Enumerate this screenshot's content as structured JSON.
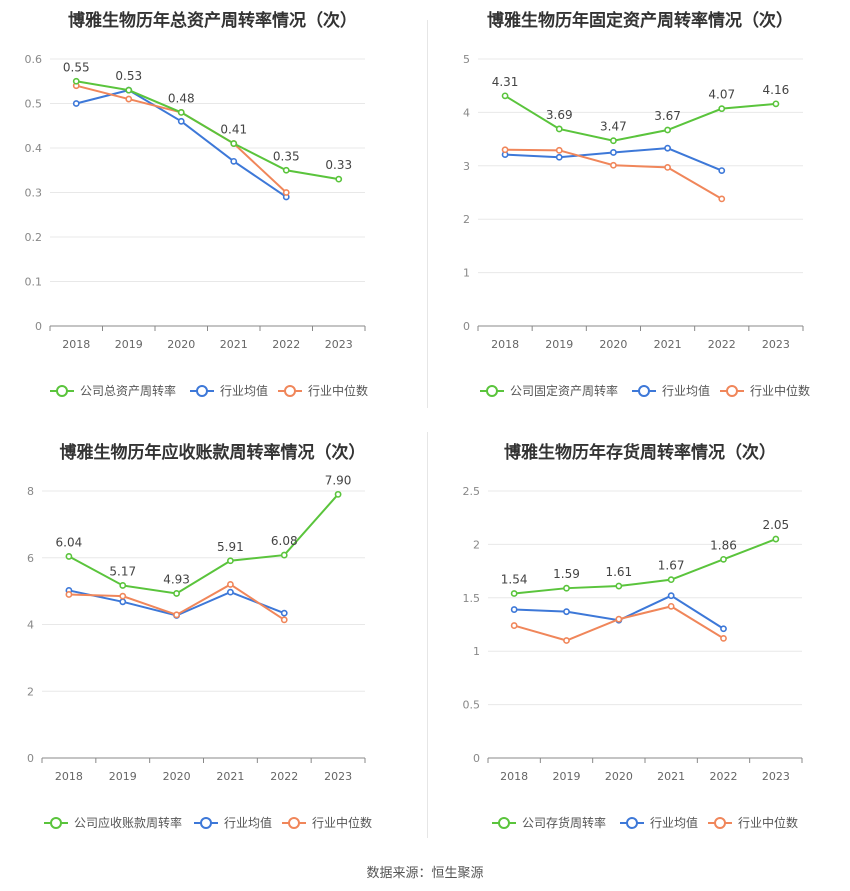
{
  "source_label": "数据来源：恒生聚源",
  "chart_data": [
    {
      "type": "line",
      "title": "博雅生物历年总资产周转率情况（次）",
      "categories": [
        "2018",
        "2019",
        "2020",
        "2021",
        "2022",
        "2023"
      ],
      "ylim": [
        0,
        0.6
      ],
      "yticks": [
        "0",
        "0.1",
        "0.2",
        "0.3",
        "0.4",
        "0.5",
        "0.6"
      ],
      "grid": true,
      "legend_position": "bottom",
      "series": [
        {
          "name": "公司总资产周转率",
          "values": [
            0.55,
            0.53,
            0.48,
            0.41,
            0.35,
            0.33
          ],
          "labels": [
            "0.55",
            "0.53",
            "0.48",
            "0.41",
            "0.35",
            "0.33"
          ],
          "color": "#5ac43c"
        },
        {
          "name": "行业均值",
          "values": [
            0.5,
            0.53,
            0.46,
            0.37,
            0.29,
            null
          ],
          "color": "#3d78d8"
        },
        {
          "name": "行业中位数",
          "values": [
            0.54,
            0.51,
            0.48,
            0.41,
            0.3,
            null
          ],
          "color": "#f0865a"
        }
      ]
    },
    {
      "type": "line",
      "title": "博雅生物历年固定资产周转率情况（次）",
      "categories": [
        "2018",
        "2019",
        "2020",
        "2021",
        "2022",
        "2023"
      ],
      "ylim": [
        0,
        5
      ],
      "yticks": [
        "0",
        "1",
        "2",
        "3",
        "4",
        "5"
      ],
      "grid": true,
      "legend_position": "bottom",
      "series": [
        {
          "name": "公司固定资产周转率",
          "values": [
            4.31,
            3.69,
            3.47,
            3.67,
            4.07,
            4.16
          ],
          "labels": [
            "4.31",
            "3.69",
            "3.47",
            "3.67",
            "4.07",
            "4.16"
          ],
          "color": "#5ac43c"
        },
        {
          "name": "行业均值",
          "values": [
            3.21,
            3.16,
            3.25,
            3.33,
            2.91,
            null
          ],
          "color": "#3d78d8"
        },
        {
          "name": "行业中位数",
          "values": [
            3.3,
            3.29,
            3.01,
            2.97,
            2.38,
            null
          ],
          "color": "#f0865a"
        }
      ]
    },
    {
      "type": "line",
      "title": "博雅生物历年应收账款周转率情况（次）",
      "categories": [
        "2018",
        "2019",
        "2020",
        "2021",
        "2022",
        "2023"
      ],
      "ylim": [
        0,
        8
      ],
      "yticks": [
        "0",
        "2",
        "4",
        "6",
        "8"
      ],
      "grid": true,
      "legend_position": "bottom",
      "series": [
        {
          "name": "公司应收账款周转率",
          "values": [
            6.04,
            5.17,
            4.93,
            5.91,
            6.08,
            7.9
          ],
          "labels": [
            "6.04",
            "5.17",
            "4.93",
            "5.91",
            "6.08",
            "7.90"
          ],
          "color": "#5ac43c"
        },
        {
          "name": "行业均值",
          "values": [
            5.02,
            4.68,
            4.27,
            4.97,
            4.34,
            null
          ],
          "color": "#3d78d8"
        },
        {
          "name": "行业中位数",
          "values": [
            4.9,
            4.85,
            4.29,
            5.2,
            4.14,
            null
          ],
          "color": "#f0865a"
        }
      ]
    },
    {
      "type": "line",
      "title": "博雅生物历年存货周转率情况（次）",
      "categories": [
        "2018",
        "2019",
        "2020",
        "2021",
        "2022",
        "2023"
      ],
      "ylim": [
        0,
        2.5
      ],
      "yticks": [
        "0",
        "0.5",
        "1",
        "1.5",
        "2",
        "2.5"
      ],
      "grid": true,
      "legend_position": "bottom",
      "series": [
        {
          "name": "公司存货周转率",
          "values": [
            1.54,
            1.59,
            1.61,
            1.67,
            1.86,
            2.05
          ],
          "labels": [
            "1.54",
            "1.59",
            "1.61",
            "1.67",
            "1.86",
            "2.05"
          ],
          "color": "#5ac43c"
        },
        {
          "name": "行业均值",
          "values": [
            1.39,
            1.37,
            1.29,
            1.52,
            1.21,
            null
          ],
          "color": "#3d78d8"
        },
        {
          "name": "行业中位数",
          "values": [
            1.24,
            1.1,
            1.3,
            1.42,
            1.12,
            null
          ],
          "color": "#f0865a"
        }
      ]
    }
  ]
}
